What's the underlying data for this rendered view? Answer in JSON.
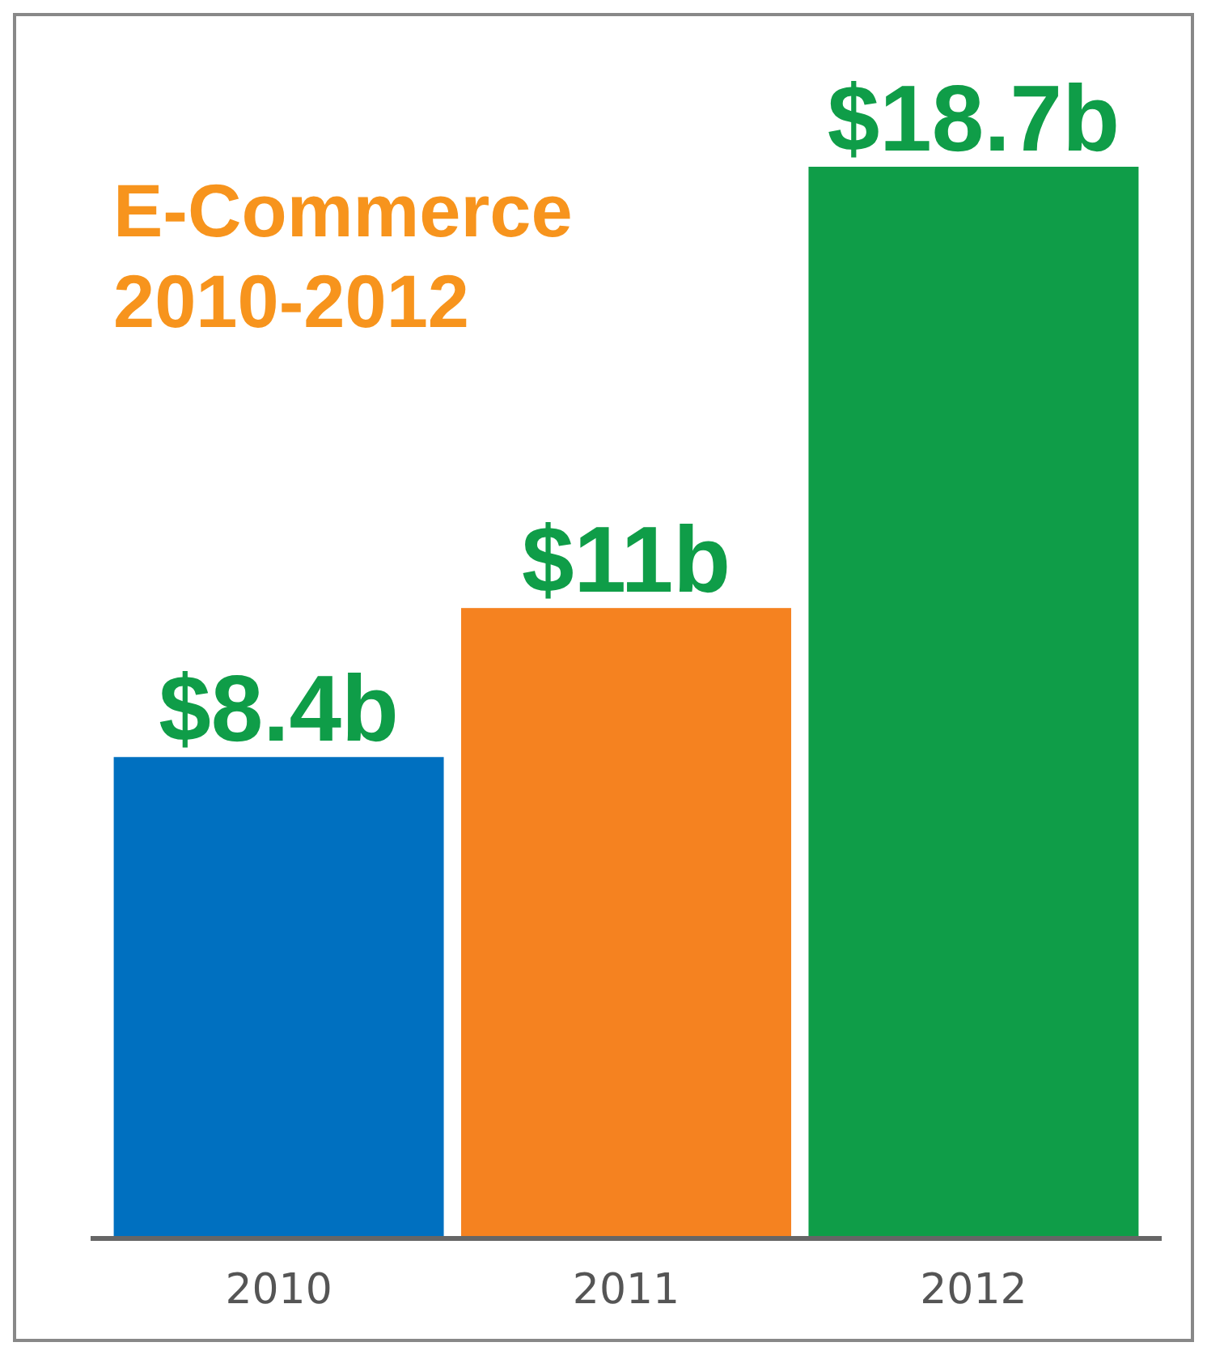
{
  "chart_data": {
    "type": "bar",
    "title": "E-Commerce 2010-2012",
    "categories": [
      "2010",
      "2011",
      "2012"
    ],
    "values": [
      8.4,
      11,
      18.7
    ],
    "colors": [
      "#0070c0",
      "#f58220",
      "#0f9d48"
    ],
    "value_labels": [
      "$8.4b",
      "$11b",
      "$18.7b"
    ]
  }
}
